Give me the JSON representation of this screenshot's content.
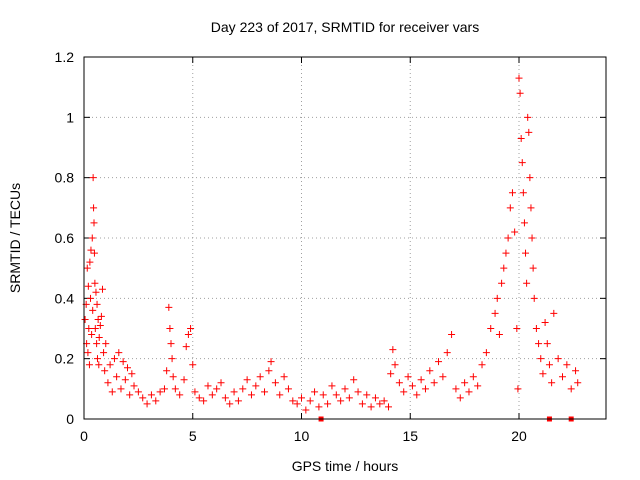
{
  "chart_data": {
    "type": "scatter",
    "title": "Day 223 of 2017, SRMTID for receiver vars",
    "xlabel": "GPS time / hours",
    "ylabel": "SRMTID / TECUs",
    "xlim": [
      0,
      24
    ],
    "ylim": [
      0,
      1.2
    ],
    "xticks": [
      0,
      5,
      10,
      15,
      20
    ],
    "xtick_labels": [
      "0",
      "5",
      "10",
      "15",
      "20"
    ],
    "yticks": [
      0,
      0.2,
      0.4,
      0.6,
      0.8,
      1,
      1.2
    ],
    "ytick_labels": [
      "0",
      "0.2",
      "0.4",
      "0.6",
      "0.8",
      "1",
      "1.2"
    ],
    "grid": true,
    "marker": "+",
    "color": "#ff0000",
    "series": [
      {
        "name": "SRMTID",
        "points": [
          [
            0.05,
            0.33
          ],
          [
            0.1,
            0.38
          ],
          [
            0.12,
            0.25
          ],
          [
            0.15,
            0.5
          ],
          [
            0.18,
            0.22
          ],
          [
            0.2,
            0.44
          ],
          [
            0.22,
            0.3
          ],
          [
            0.25,
            0.18
          ],
          [
            0.27,
            0.52
          ],
          [
            0.3,
            0.4
          ],
          [
            0.32,
            0.56
          ],
          [
            0.35,
            0.28
          ],
          [
            0.38,
            0.6
          ],
          [
            0.4,
            0.36
          ],
          [
            0.42,
            0.8
          ],
          [
            0.44,
            0.7
          ],
          [
            0.46,
            0.65
          ],
          [
            0.48,
            0.55
          ],
          [
            0.5,
            0.45
          ],
          [
            0.52,
            0.3
          ],
          [
            0.55,
            0.42
          ],
          [
            0.58,
            0.25
          ],
          [
            0.6,
            0.38
          ],
          [
            0.62,
            0.2
          ],
          [
            0.65,
            0.33
          ],
          [
            0.68,
            0.18
          ],
          [
            0.7,
            0.27
          ],
          [
            0.75,
            0.31
          ],
          [
            0.8,
            0.34
          ],
          [
            0.85,
            0.43
          ],
          [
            0.9,
            0.22
          ],
          [
            0.95,
            0.16
          ],
          [
            1.0,
            0.25
          ],
          [
            1.1,
            0.12
          ],
          [
            1.2,
            0.18
          ],
          [
            1.3,
            0.09
          ],
          [
            1.4,
            0.2
          ],
          [
            1.5,
            0.14
          ],
          [
            1.6,
            0.22
          ],
          [
            1.7,
            0.1
          ],
          [
            1.8,
            0.19
          ],
          [
            1.9,
            0.13
          ],
          [
            2.0,
            0.17
          ],
          [
            2.1,
            0.08
          ],
          [
            2.2,
            0.15
          ],
          [
            2.3,
            0.11
          ],
          [
            2.5,
            0.09
          ],
          [
            2.7,
            0.07
          ],
          [
            2.9,
            0.05
          ],
          [
            3.1,
            0.08
          ],
          [
            3.3,
            0.06
          ],
          [
            3.5,
            0.09
          ],
          [
            3.7,
            0.1
          ],
          [
            3.8,
            0.16
          ],
          [
            3.9,
            0.37
          ],
          [
            3.95,
            0.3
          ],
          [
            4.0,
            0.25
          ],
          [
            4.05,
            0.2
          ],
          [
            4.1,
            0.14
          ],
          [
            4.2,
            0.1
          ],
          [
            4.4,
            0.08
          ],
          [
            4.6,
            0.13
          ],
          [
            4.7,
            0.24
          ],
          [
            4.8,
            0.28
          ],
          [
            4.9,
            0.3
          ],
          [
            5.0,
            0.18
          ],
          [
            5.1,
            0.09
          ],
          [
            5.3,
            0.07
          ],
          [
            5.5,
            0.06
          ],
          [
            5.7,
            0.11
          ],
          [
            5.9,
            0.08
          ],
          [
            6.1,
            0.1
          ],
          [
            6.3,
            0.12
          ],
          [
            6.5,
            0.07
          ],
          [
            6.7,
            0.05
          ],
          [
            6.9,
            0.09
          ],
          [
            7.1,
            0.06
          ],
          [
            7.3,
            0.1
          ],
          [
            7.5,
            0.13
          ],
          [
            7.7,
            0.08
          ],
          [
            7.9,
            0.11
          ],
          [
            8.1,
            0.14
          ],
          [
            8.3,
            0.09
          ],
          [
            8.5,
            0.16
          ],
          [
            8.6,
            0.19
          ],
          [
            8.8,
            0.12
          ],
          [
            9.0,
            0.08
          ],
          [
            9.2,
            0.14
          ],
          [
            9.4,
            0.1
          ],
          [
            9.6,
            0.06
          ],
          [
            9.8,
            0.05
          ],
          [
            10.0,
            0.07
          ],
          [
            10.2,
            0.03
          ],
          [
            10.4,
            0.06
          ],
          [
            10.6,
            0.09
          ],
          [
            10.8,
            0.04
          ],
          [
            11.0,
            0.08
          ],
          [
            11.2,
            0.05
          ],
          [
            11.4,
            0.11
          ],
          [
            11.6,
            0.08
          ],
          [
            11.8,
            0.06
          ],
          [
            12.0,
            0.1
          ],
          [
            12.2,
            0.07
          ],
          [
            12.4,
            0.13
          ],
          [
            12.6,
            0.09
          ],
          [
            12.8,
            0.05
          ],
          [
            13.0,
            0.08
          ],
          [
            13.2,
            0.04
          ],
          [
            13.4,
            0.07
          ],
          [
            13.6,
            0.05
          ],
          [
            13.8,
            0.06
          ],
          [
            14.0,
            0.04
          ],
          [
            14.1,
            0.15
          ],
          [
            14.2,
            0.23
          ],
          [
            14.3,
            0.18
          ],
          [
            14.5,
            0.12
          ],
          [
            14.7,
            0.09
          ],
          [
            14.9,
            0.14
          ],
          [
            15.1,
            0.11
          ],
          [
            15.3,
            0.08
          ],
          [
            15.5,
            0.13
          ],
          [
            15.7,
            0.1
          ],
          [
            15.9,
            0.16
          ],
          [
            16.1,
            0.12
          ],
          [
            16.3,
            0.19
          ],
          [
            16.5,
            0.14
          ],
          [
            16.7,
            0.22
          ],
          [
            16.9,
            0.28
          ],
          [
            17.1,
            0.1
          ],
          [
            17.3,
            0.07
          ],
          [
            17.5,
            0.12
          ],
          [
            17.7,
            0.09
          ],
          [
            17.9,
            0.14
          ],
          [
            18.1,
            0.11
          ],
          [
            18.3,
            0.18
          ],
          [
            18.5,
            0.22
          ],
          [
            18.7,
            0.3
          ],
          [
            18.9,
            0.35
          ],
          [
            19.0,
            0.4
          ],
          [
            19.1,
            0.28
          ],
          [
            19.2,
            0.45
          ],
          [
            19.3,
            0.5
          ],
          [
            19.4,
            0.55
          ],
          [
            19.5,
            0.6
          ],
          [
            19.6,
            0.7
          ],
          [
            19.7,
            0.75
          ],
          [
            19.8,
            0.62
          ],
          [
            19.9,
            0.3
          ],
          [
            19.95,
            0.1
          ],
          [
            20.0,
            1.13
          ],
          [
            20.05,
            1.08
          ],
          [
            20.1,
            0.93
          ],
          [
            20.15,
            0.85
          ],
          [
            20.2,
            0.75
          ],
          [
            20.25,
            0.65
          ],
          [
            20.3,
            0.55
          ],
          [
            20.35,
            0.45
          ],
          [
            20.4,
            1.0
          ],
          [
            20.45,
            0.95
          ],
          [
            20.5,
            0.8
          ],
          [
            20.55,
            0.7
          ],
          [
            20.6,
            0.6
          ],
          [
            20.65,
            0.5
          ],
          [
            20.7,
            0.4
          ],
          [
            20.8,
            0.3
          ],
          [
            20.9,
            0.25
          ],
          [
            21.0,
            0.2
          ],
          [
            21.1,
            0.15
          ],
          [
            21.2,
            0.32
          ],
          [
            21.3,
            0.25
          ],
          [
            21.4,
            0.18
          ],
          [
            21.5,
            0.12
          ],
          [
            21.6,
            0.35
          ],
          [
            21.8,
            0.2
          ],
          [
            22.0,
            0.14
          ],
          [
            22.2,
            0.18
          ],
          [
            22.4,
            0.1
          ],
          [
            22.6,
            0.16
          ],
          [
            22.7,
            0.12
          ]
        ]
      }
    ],
    "gap_markers_x": [
      10.9,
      21.4,
      22.4
    ]
  }
}
